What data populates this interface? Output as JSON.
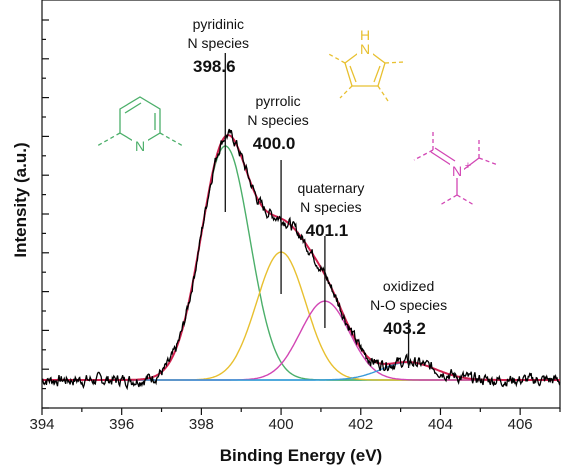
{
  "chart_data": {
    "type": "line",
    "xlabel": "Binding Energy (eV)",
    "ylabel": "Intensity (a.u.)",
    "xlim": [
      394,
      407
    ],
    "ylim": [
      -0.08,
      1.05
    ],
    "x_ticks": [
      "394",
      "396",
      "398",
      "400",
      "402",
      "404",
      "406"
    ],
    "grid": false,
    "series": [
      {
        "role": "measured",
        "color": "#000000"
      },
      {
        "role": "envelope-fit",
        "color": "#d0214f"
      },
      {
        "role": "component",
        "color": "#4caf6a",
        "center": 398.6,
        "amplitude": 0.86,
        "fwhm": 1.45
      },
      {
        "role": "component",
        "color": "#e8c030",
        "center": 400.0,
        "amplitude": 0.47,
        "fwhm": 1.45
      },
      {
        "role": "component",
        "color": "#d246b4",
        "center": 401.1,
        "amplitude": 0.29,
        "fwhm": 1.45
      },
      {
        "role": "component",
        "color": "#3a9ad9",
        "center": 403.2,
        "amplitude": 0.065,
        "fwhm": 1.6
      },
      {
        "role": "baseline",
        "color": "#2bb9c9"
      }
    ],
    "peak_annotations": [
      {
        "name_line1": "pyridinic",
        "name_line2": "N species",
        "value": "398.6",
        "x": 398.6
      },
      {
        "name_line1": "pyrrolic",
        "name_line2": "N species",
        "value": "400.0",
        "x": 400.0
      },
      {
        "name_line1": "quaternary",
        "name_line2": "N species",
        "value": "401.1",
        "x": 401.1
      },
      {
        "name_line1": "oxidized",
        "name_line2": "N-O species",
        "value": "403.2",
        "x": 403.2
      }
    ]
  },
  "molecules": {
    "pyridine": {
      "atom_label": "N",
      "color": "#4caf6a"
    },
    "pyrrole": {
      "atom_label": "H",
      "atom_label2": "N",
      "color": "#e8c030"
    },
    "quaternary": {
      "atom_label": "N",
      "charge": "+",
      "color": "#d246b4"
    }
  }
}
